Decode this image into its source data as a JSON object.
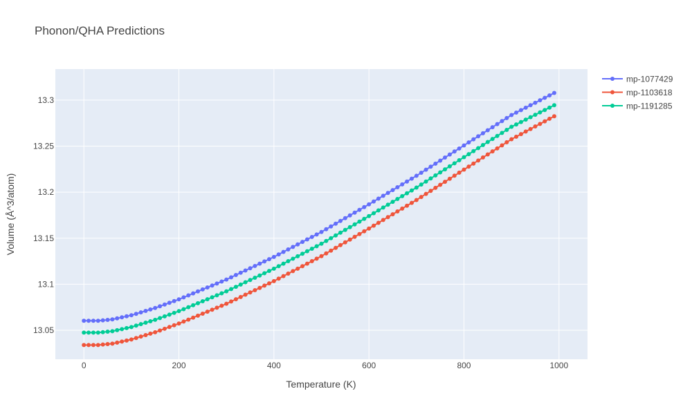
{
  "chart_data": {
    "type": "line",
    "title": "Phonon/QHA Predictions",
    "xlabel": "Temperature (K)",
    "ylabel": "Volume (Å^3/atom)",
    "xlim": [
      -60,
      1060
    ],
    "ylim": [
      13.0185,
      13.3337
    ],
    "x_ticks": [
      0,
      200,
      400,
      600,
      800,
      1000
    ],
    "x_tick_labels": [
      "0",
      "200",
      "400",
      "600",
      "800",
      "1000"
    ],
    "y_ticks": [
      13.05,
      13.1,
      13.15,
      13.2,
      13.25,
      13.3
    ],
    "y_tick_labels": [
      "13.05",
      "13.1",
      "13.15",
      "13.2",
      "13.25",
      "13.3"
    ],
    "grid": true,
    "legend_position": "top-right",
    "x": {
      "start": 0,
      "step": 10,
      "count": 100
    },
    "series": [
      {
        "name": "mp-1077429",
        "color": "#636efa",
        "keypoints": [
          [
            0,
            13.0603
          ],
          [
            30,
            13.0603
          ],
          [
            60,
            13.0618
          ],
          [
            100,
            13.0663
          ],
          [
            150,
            13.0742
          ],
          [
            200,
            13.0836
          ],
          [
            300,
            13.1051
          ],
          [
            400,
            13.1297
          ],
          [
            500,
            13.1568
          ],
          [
            600,
            13.1868
          ],
          [
            700,
            13.2178
          ],
          [
            800,
            13.2508
          ],
          [
            900,
            13.2838
          ],
          [
            990,
            13.3078
          ]
        ]
      },
      {
        "name": "mp-1103618",
        "color": "#ef553b",
        "keypoints": [
          [
            0,
            13.034
          ],
          [
            30,
            13.034
          ],
          [
            60,
            13.0355
          ],
          [
            100,
            13.04
          ],
          [
            150,
            13.0479
          ],
          [
            200,
            13.0573
          ],
          [
            300,
            13.0788
          ],
          [
            400,
            13.1034
          ],
          [
            500,
            13.1305
          ],
          [
            600,
            13.1605
          ],
          [
            700,
            13.1915
          ],
          [
            800,
            13.2245
          ],
          [
            900,
            13.2575
          ],
          [
            990,
            13.2825
          ]
        ]
      },
      {
        "name": "mp-1191285",
        "color": "#00cc96",
        "keypoints": [
          [
            0,
            13.0475
          ],
          [
            30,
            13.0475
          ],
          [
            60,
            13.049
          ],
          [
            100,
            13.0535
          ],
          [
            150,
            13.0614
          ],
          [
            200,
            13.0708
          ],
          [
            300,
            13.0923
          ],
          [
            400,
            13.1169
          ],
          [
            500,
            13.144
          ],
          [
            600,
            13.174
          ],
          [
            700,
            13.205
          ],
          [
            800,
            13.238
          ],
          [
            900,
            13.271
          ],
          [
            990,
            13.2945
          ]
        ]
      }
    ]
  }
}
